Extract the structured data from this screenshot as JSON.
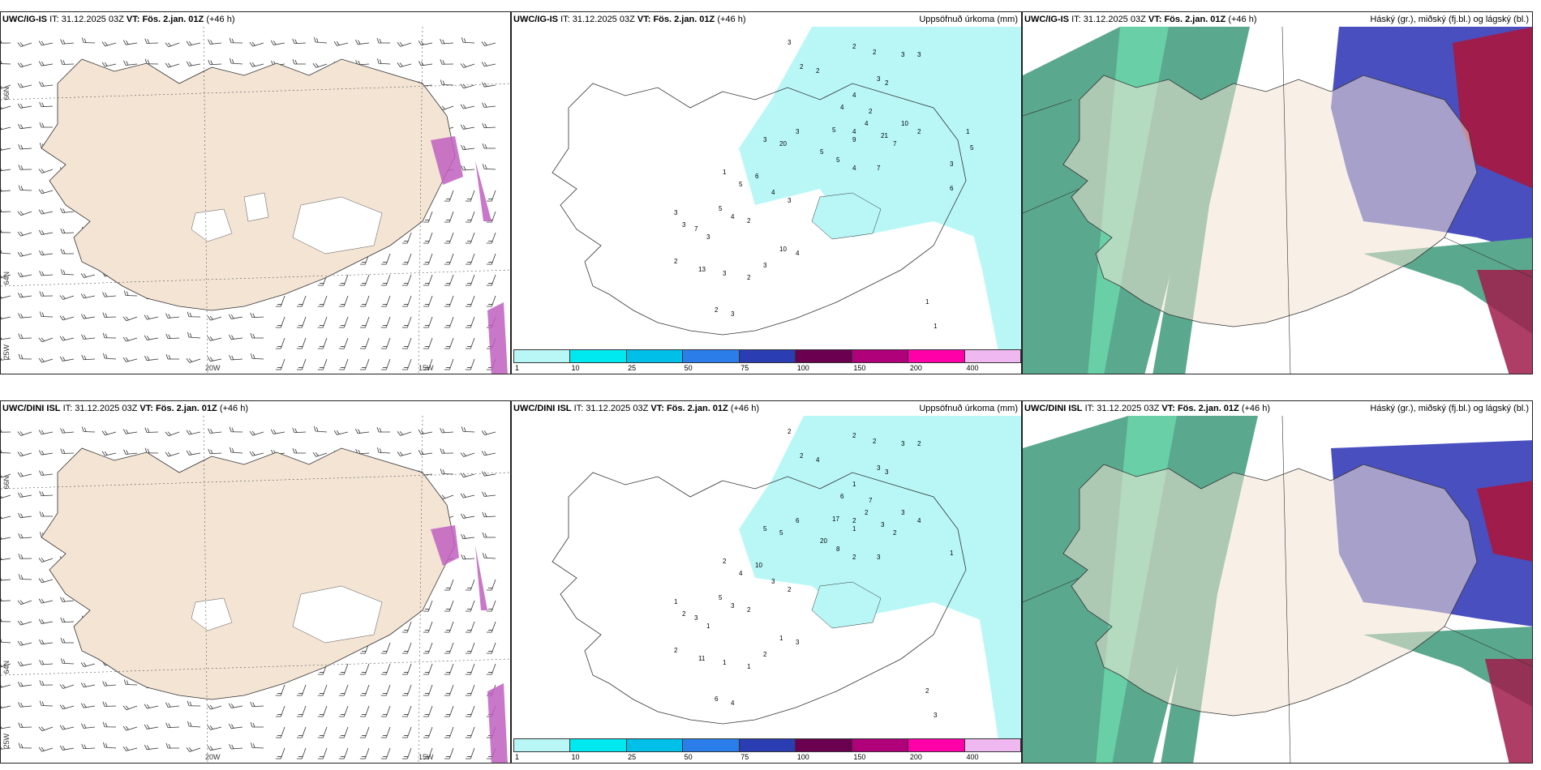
{
  "panels": [
    {
      "id": "r1c1",
      "model": "UWC/IG-IS",
      "it_label": "IT:",
      "it_value": "31.12.2025 03Z",
      "vt_label": "VT:",
      "vt_value": "Fös. 2.jan. 01Z",
      "lead": "(+46 h)",
      "right_title": "",
      "lon_labels": [
        "20W",
        "15W"
      ],
      "lat_labels": [
        "66N",
        "64N",
        "25W"
      ]
    },
    {
      "id": "r1c2",
      "model": "UWC/IG-IS",
      "it_label": "IT:",
      "it_value": "31.12.2025 03Z",
      "vt_label": "VT:",
      "vt_value": "Fös. 2.jan. 01Z",
      "lead": "(+46 h)",
      "right_title": "Uppsöfnuð úrkoma (mm)",
      "values": [
        "3",
        "2",
        "2",
        "3",
        "3",
        "2",
        "2",
        "3",
        "2",
        "4",
        "4",
        "2",
        "4",
        "4",
        "10",
        "2",
        "3",
        "5",
        "9",
        "21",
        "7",
        "3",
        "20",
        "5",
        "5",
        "4",
        "7",
        "1",
        "6",
        "5",
        "4",
        "3",
        "5",
        "4",
        "2",
        "3",
        "3",
        "7",
        "3",
        "10",
        "4",
        "3",
        "2",
        "13",
        "3",
        "2",
        "2",
        "3",
        "1",
        "1",
        "3",
        "1",
        "5",
        "6"
      ],
      "legend_labels": [
        "1",
        "10",
        "25",
        "50",
        "75",
        "100",
        "150",
        "200",
        "400"
      ],
      "legend_colors": [
        "#b9f7f7",
        "#00e8f0",
        "#00bfe8",
        "#2b7de9",
        "#2a3db3",
        "#6b0050",
        "#b0007a",
        "#ff00a8",
        "#f0b8f0"
      ]
    },
    {
      "id": "r1c3",
      "model": "UWC/IG-IS",
      "it_label": "IT:",
      "it_value": "31.12.2025 03Z",
      "vt_label": "VT:",
      "vt_value": "Fös. 2.jan. 01Z",
      "lead": "(+46 h)",
      "right_title": "Háský (gr.), miðský (fj.bl.) og lágský (bl.)"
    },
    {
      "id": "r2c1",
      "model": "UWC/DINI ISL",
      "it_label": "IT:",
      "it_value": "31.12.2025 03Z",
      "vt_label": "VT:",
      "vt_value": "Fös. 2.jan. 01Z",
      "lead": "(+46 h)",
      "right_title": "",
      "lon_labels": [
        "20W",
        "15W"
      ],
      "lat_labels": [
        "66N",
        "64N",
        "25W"
      ]
    },
    {
      "id": "r2c2",
      "model": "UWC/DINI ISL",
      "it_label": "IT:",
      "it_value": "31.12.2025 03Z",
      "vt_label": "VT:",
      "vt_value": "Fös. 2.jan. 01Z",
      "lead": "(+46 h)",
      "right_title": "Uppsöfnuð úrkoma (mm)",
      "values": [
        "2",
        "2",
        "2",
        "3",
        "2",
        "2",
        "4",
        "3",
        "3",
        "1",
        "6",
        "7",
        "2",
        "2",
        "3",
        "4",
        "6",
        "17",
        "1",
        "3",
        "2",
        "5",
        "5",
        "20",
        "8",
        "2",
        "3",
        "2",
        "10",
        "4",
        "3",
        "2",
        "5",
        "3",
        "2",
        "1",
        "2",
        "3",
        "1",
        "1",
        "3",
        "2",
        "2",
        "11",
        "1",
        "1",
        "6",
        "4",
        "2",
        "3",
        "1"
      ],
      "legend_labels": [
        "1",
        "10",
        "25",
        "50",
        "75",
        "100",
        "150",
        "200",
        "400"
      ],
      "legend_colors": [
        "#b9f7f7",
        "#00e8f0",
        "#00bfe8",
        "#2b7de9",
        "#2a3db3",
        "#6b0050",
        "#b0007a",
        "#ff00a8",
        "#f0b8f0"
      ]
    },
    {
      "id": "r2c3",
      "model": "UWC/DINI ISL",
      "it_label": "IT:",
      "it_value": "31.12.2025 03Z",
      "vt_label": "VT:",
      "vt_value": "Fös. 2.jan. 01Z",
      "lead": "(+46 h)",
      "right_title": "Háský (gr.), miðský (fj.bl.) og lágský (bl.)"
    }
  ],
  "colors": {
    "land": "#f3e4d4",
    "precip_light": "#b9f7f7",
    "cloud_high": "#5aa88e",
    "cloud_mid": "#4a4fbf",
    "cloud_low": "#a01c4a",
    "cloud_edge": "#6fe0b0"
  }
}
